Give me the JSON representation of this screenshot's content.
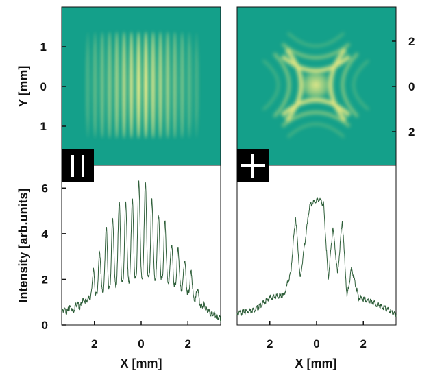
{
  "colors": {
    "image_background": "#14a08a",
    "fringe_bright": "#f2ee8a",
    "trace": "#2f5f3a",
    "badge_background": "#000000",
    "badge_symbol": "#ffffff",
    "axis": "#111111"
  },
  "panels": [
    {
      "badge_icon": "parallel-lines-icon",
      "image_description": "vertical fringe pattern",
      "y_ticks": [
        "1",
        "0",
        "1"
      ],
      "y_tick_side": "left"
    },
    {
      "badge_icon": "cross-icon",
      "image_description": "cross fringe pattern",
      "y_ticks": [
        "2",
        "0",
        "2"
      ],
      "y_tick_side": "right"
    }
  ],
  "chart_data": [
    {
      "type": "line",
      "panel": "left",
      "xlabel": "X [mm]",
      "ylabel": "Intensity [arb.units]",
      "xlim": [
        -3.4,
        3.4
      ],
      "ylim": [
        0,
        7
      ],
      "x_ticks": [
        -2,
        0,
        2
      ],
      "x_tick_labels": [
        "2",
        "0",
        "2"
      ],
      "y_ticks": [
        0,
        2,
        4,
        6
      ],
      "y_tick_labels": [
        "0",
        "2",
        "4",
        "6"
      ],
      "x": [
        -3.4,
        -3.0,
        -2.6,
        -2.2,
        -2.0,
        -1.8,
        -1.6,
        -1.4,
        -1.2,
        -1.0,
        -0.8,
        -0.6,
        -0.4,
        -0.2,
        0.0,
        0.2,
        0.4,
        0.6,
        0.8,
        1.0,
        1.2,
        1.4,
        1.6,
        1.8,
        2.0,
        2.2,
        2.4,
        2.6,
        2.8,
        3.0,
        3.4
      ],
      "y": [
        0.6,
        0.55,
        0.8,
        1.2,
        2.8,
        3.1,
        3.6,
        4.9,
        4.6,
        5.3,
        5.5,
        5.3,
        5.4,
        6.2,
        6.3,
        6.2,
        5.6,
        5.1,
        4.7,
        4.6,
        3.7,
        3.4,
        3.3,
        2.9,
        2.6,
        2.2,
        1.6,
        1.1,
        0.7,
        0.45,
        0.3
      ],
      "fringe_period_mm": 0.28,
      "baseline": [
        [
          -3.4,
          0.6
        ],
        [
          -2.0,
          1.3
        ],
        [
          -1.0,
          1.8
        ],
        [
          0.0,
          2.1
        ],
        [
          1.0,
          2.0
        ],
        [
          2.0,
          1.4
        ],
        [
          2.6,
          0.8
        ],
        [
          3.4,
          0.3
        ]
      ]
    },
    {
      "type": "line",
      "panel": "right",
      "xlabel": "X [mm]",
      "xlim": [
        -3.4,
        3.4
      ],
      "ylim": [
        0,
        7
      ],
      "x_ticks": [
        -2,
        0,
        2
      ],
      "x_tick_labels": [
        "2",
        "0",
        "2"
      ],
      "x": [
        -3.4,
        -2.6,
        -2.0,
        -1.4,
        -1.1,
        -0.9,
        -0.7,
        -0.5,
        -0.3,
        -0.1,
        0.1,
        0.3,
        0.5,
        0.7,
        0.9,
        1.1,
        1.3,
        1.5,
        1.8,
        2.4,
        3.0,
        3.4
      ],
      "y": [
        0.5,
        0.7,
        1.2,
        1.3,
        2.3,
        4.8,
        2.0,
        3.6,
        5.2,
        5.4,
        5.5,
        5.3,
        2.0,
        4.3,
        2.2,
        4.6,
        1.2,
        2.5,
        1.2,
        1.0,
        0.7,
        0.45
      ]
    }
  ]
}
